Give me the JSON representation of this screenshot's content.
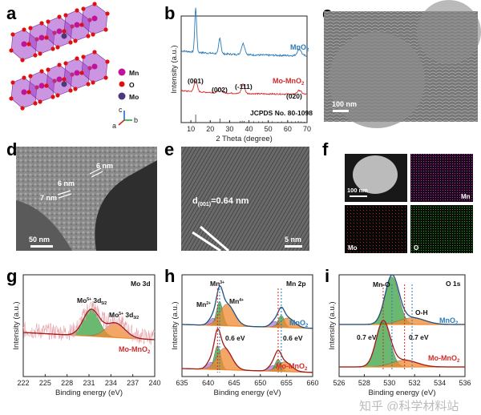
{
  "panels": {
    "a": "a",
    "b": "b",
    "c": "c",
    "d": "d",
    "e": "e",
    "f": "f",
    "g": "g",
    "h": "h",
    "i": "i"
  },
  "structure_legend": {
    "mn": "Mn",
    "o": "O",
    "mo": "Mo",
    "axis_c": "c",
    "axis_a": "a",
    "axis_b": "b"
  },
  "colors": {
    "mno2": "#2a7ab8",
    "mo_mno2": "#d42a2a",
    "mn_o_atom": "#c0139a",
    "o_atom": "#e01010",
    "mo_atom": "#4a3a78",
    "octahedra": "#a040c8",
    "green_fit": "#3aa040",
    "orange_fit": "#f08a30",
    "purple_fit": "#b07ad8"
  },
  "images": {
    "c": {
      "scale": "100 nm"
    },
    "d": {
      "scale": "50 nm",
      "labels": [
        "6 nm",
        "6 nm",
        "7 nm"
      ]
    },
    "e": {
      "scale": "5 nm",
      "d_label": "d",
      "d_sub": "(001)",
      "d_val": "=0.64 nm"
    },
    "f": {
      "scale": "100 nm",
      "maps": [
        "Mn",
        "Mo",
        "O"
      ]
    }
  },
  "chart_data": [
    {
      "panel": "b",
      "type": "line",
      "xlabel": "2 Theta (degree)",
      "ylabel": "Intensity (a.u.)",
      "xlim": [
        5,
        70
      ],
      "xticks": [
        10,
        20,
        30,
        40,
        50,
        60,
        70
      ],
      "series": [
        {
          "name": "MnO2",
          "peaks": [
            [
              12.5,
              1.0,
              0.5
            ],
            [
              25,
              0.35,
              0.6
            ],
            [
              37,
              0.25,
              0.9
            ],
            [
              66,
              0.15,
              1.0
            ]
          ]
        },
        {
          "name": "Mo-MnO2",
          "peaks": [
            [
              12.5,
              0.35,
              0.8
            ],
            [
              25,
              0.15,
              0.9
            ],
            [
              37,
              0.3,
              0.8
            ],
            [
              66,
              0.12,
              1.0
            ]
          ]
        }
      ],
      "peak_labels": [
        "(001)",
        "(002)",
        "(-111)",
        "(020)"
      ],
      "reference": {
        "name": "JCPDS No. 80-1098",
        "sticks": [
          [
            12.5,
            1
          ],
          [
            25,
            0.5
          ],
          [
            35.5,
            0.2
          ],
          [
            36.5,
            0.25
          ],
          [
            37.5,
            0.2
          ],
          [
            40,
            0.2
          ],
          [
            42.5,
            0.15
          ],
          [
            45,
            0.15
          ],
          [
            47,
            0.15
          ],
          [
            50,
            0.1
          ],
          [
            52,
            0.15
          ],
          [
            55,
            0.1
          ],
          [
            57,
            0.15
          ],
          [
            60,
            0.1
          ],
          [
            62,
            0.15
          ],
          [
            64,
            0.15
          ],
          [
            65.5,
            0.2
          ],
          [
            67,
            0.15
          ],
          [
            68.5,
            0.1
          ]
        ]
      }
    },
    {
      "panel": "g",
      "type": "line",
      "title": "Mo 3d",
      "xlabel": "Binding energy (eV)",
      "ylabel": "Intensity (a.u.)",
      "xlim": [
        222,
        240
      ],
      "xticks": [
        222,
        225,
        228,
        231,
        234,
        237,
        240
      ],
      "series": [
        {
          "name": "Mo-MnO2",
          "components": [
            {
              "label": "Mo",
              "sup": "5+",
              "orb": " 3d",
              "sub": "5/2",
              "center": 231.3,
              "amp": 0.55,
              "width": 1.1,
              "color": "green"
            },
            {
              "label": "Mo",
              "sup": "5+",
              "orb": " 3d",
              "sub": "3/2",
              "center": 234.6,
              "amp": 0.3,
              "width": 1.3,
              "color": "orange"
            }
          ]
        }
      ]
    },
    {
      "panel": "h",
      "type": "line",
      "title": "Mn 2p",
      "xlabel": "Binding energy (eV)",
      "ylabel": "Intensity (a.u.)",
      "xlim": [
        635,
        660
      ],
      "xticks": [
        635,
        640,
        645,
        650,
        655,
        660
      ],
      "series": [
        {
          "name": "MnO2",
          "components": [
            [
              641.0,
              0.15,
              0.8,
              "purple"
            ],
            [
              642.2,
              0.5,
              0.6,
              "green"
            ],
            [
              643.6,
              0.45,
              1.4,
              "orange"
            ],
            [
              652.8,
              0.12,
              0.8,
              "purple"
            ],
            [
              654.0,
              0.25,
              0.6,
              "green"
            ],
            [
              655.2,
              0.2,
              1.3,
              "orange"
            ]
          ]
        },
        {
          "name": "Mo-MnO2",
          "components": [
            [
              640.6,
              0.15,
              0.8,
              "purple"
            ],
            [
              641.8,
              0.5,
              0.6,
              "green"
            ],
            [
              643.1,
              0.45,
              1.4,
              "orange"
            ],
            [
              652.4,
              0.12,
              0.8,
              "purple"
            ],
            [
              653.4,
              0.25,
              0.6,
              "green"
            ],
            [
              654.6,
              0.2,
              1.3,
              "orange"
            ]
          ]
        }
      ],
      "labels": {
        "mn3": "Mn",
        "mn3_sup": "3+",
        "mn2": "Mn",
        "mn2_sup": "2+",
        "mn4": "Mn",
        "mn4_sup": "4+"
      },
      "shift": [
        "0.6 eV",
        "0.6 eV"
      ]
    },
    {
      "panel": "i",
      "type": "line",
      "title": "O 1s",
      "xlabel": "Binding energy (eV)",
      "ylabel": "Intensity (a.u.)",
      "xlim": [
        526,
        536
      ],
      "xticks": [
        526,
        528,
        530,
        532,
        534,
        536
      ],
      "series": [
        {
          "name": "MnO2",
          "components": [
            [
              530.2,
              0.85,
              0.55,
              "green"
            ],
            [
              531.8,
              0.12,
              1.0,
              "orange"
            ]
          ]
        },
        {
          "name": "Mo-MnO2",
          "components": [
            [
              529.5,
              0.8,
              0.55,
              "green"
            ],
            [
              531.2,
              0.12,
              1.0,
              "orange"
            ]
          ]
        }
      ],
      "labels": {
        "mno": "Mn-O",
        "oh": "O-H"
      },
      "shift": [
        "0.7 eV",
        "0.7 eV"
      ]
    }
  ],
  "legend": {
    "mno2": "MnO",
    "mno2_sub": "2",
    "mo_mno2": "Mo-MnO",
    "mo_mno2_sub": "2"
  },
  "watermark": "知乎 @科学材料站"
}
